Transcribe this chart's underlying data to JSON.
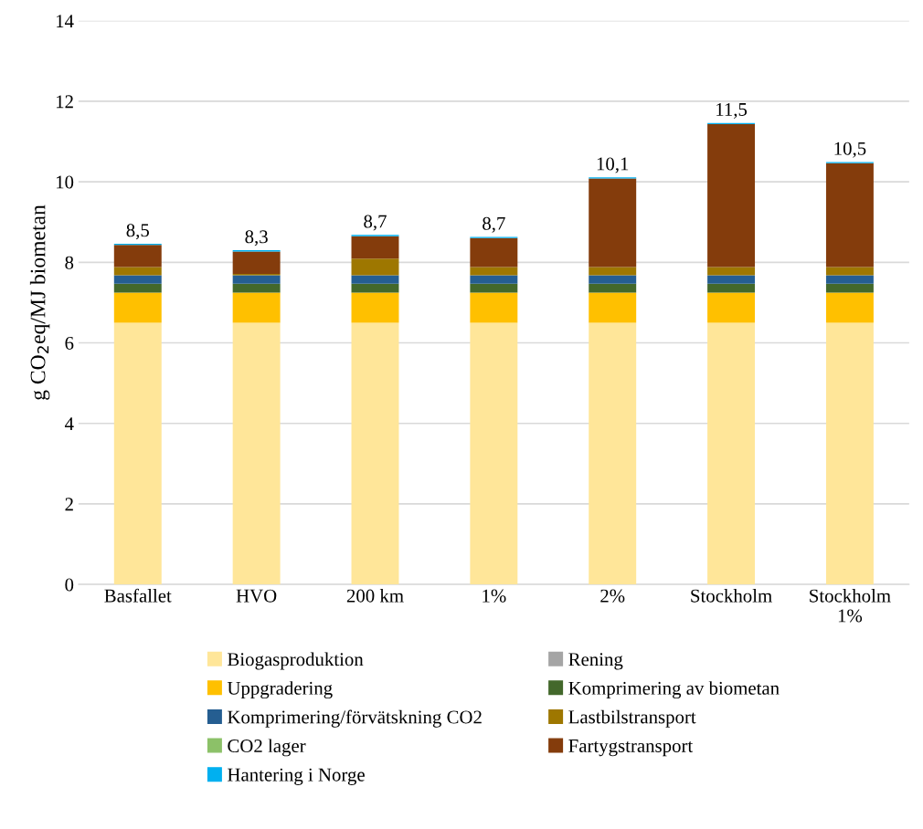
{
  "chart_data": {
    "type": "bar",
    "stacked": true,
    "ylabel": "g CO$_{2}$eq/MJ biometan",
    "categories": [
      "Basfallet",
      "HVO",
      "200 km",
      "1%",
      "2%",
      "Stockholm",
      "Stockholm\n1%"
    ],
    "series": [
      {
        "name": "Biogasproduktion",
        "color": "#ffe699",
        "values": [
          6.5,
          6.5,
          6.5,
          6.5,
          6.5,
          6.5,
          6.5
        ]
      },
      {
        "name": "Rening",
        "color": "#a5a5a5",
        "values": [
          0,
          0,
          0,
          0,
          0,
          0,
          0
        ]
      },
      {
        "name": "Uppgradering",
        "color": "#ffc000",
        "values": [
          0.75,
          0.75,
          0.75,
          0.75,
          0.75,
          0.75,
          0.75
        ]
      },
      {
        "name": "Komprimering av biometan",
        "color": "#43682b",
        "values": [
          0.22,
          0.22,
          0.22,
          0.22,
          0.22,
          0.22,
          0.22
        ]
      },
      {
        "name": "Komprimering/förvätskning CO2",
        "color": "#255e91",
        "values": [
          0.21,
          0.21,
          0.21,
          0.21,
          0.21,
          0.21,
          0.21
        ]
      },
      {
        "name": "Lastbilstransport",
        "color": "#9e7700",
        "values": [
          0.2,
          0.03,
          0.41,
          0.2,
          0.2,
          0.2,
          0.2
        ]
      },
      {
        "name": "CO2 lager",
        "color": "#8cc168",
        "values": [
          0,
          0,
          0,
          0,
          0,
          0,
          0
        ]
      },
      {
        "name": "Fartygstransport",
        "color": "#843c0c",
        "values": [
          0.55,
          0.56,
          0.56,
          0.72,
          2.2,
          3.55,
          2.58
        ]
      },
      {
        "name": "Hantering i Norge",
        "color": "#00b0f0",
        "values": [
          0.03,
          0.03,
          0.03,
          0.03,
          0.03,
          0.03,
          0.03
        ]
      }
    ],
    "totals": [
      "8,5",
      "8,3",
      "8,7",
      "8,7",
      "10,1",
      "11,5",
      "10,5"
    ],
    "ylim": [
      0,
      14
    ],
    "yticks": [
      0,
      2,
      4,
      6,
      8,
      10,
      12,
      14
    ],
    "grid": "y",
    "legend": "bottom"
  }
}
